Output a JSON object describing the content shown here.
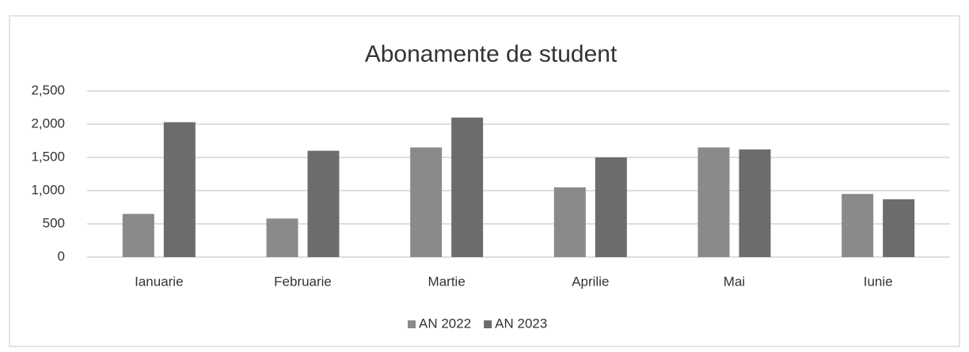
{
  "chart_data": {
    "type": "bar",
    "title": "Abonamente de student",
    "categories": [
      "Ianuarie",
      "Februarie",
      "Martie",
      "Aprilie",
      "Mai",
      "Iunie"
    ],
    "series": [
      {
        "name": "AN 2022",
        "color": "#8a8a8a",
        "values": [
          650,
          580,
          1650,
          1050,
          1650,
          950
        ]
      },
      {
        "name": "AN 2023",
        "color": "#6c6c6c",
        "values": [
          2030,
          1600,
          2100,
          1500,
          1620,
          870
        ]
      }
    ],
    "ylim": [
      0,
      2500
    ],
    "yticks": [
      0,
      500,
      {
        "value": 1000,
        "label": "1,000"
      },
      {
        "value": 1500,
        "label": "1,500"
      },
      {
        "value": 2000,
        "label": "2,000"
      },
      {
        "value": 2500,
        "label": "2,500"
      }
    ],
    "grid": true,
    "legend": "bottom"
  }
}
